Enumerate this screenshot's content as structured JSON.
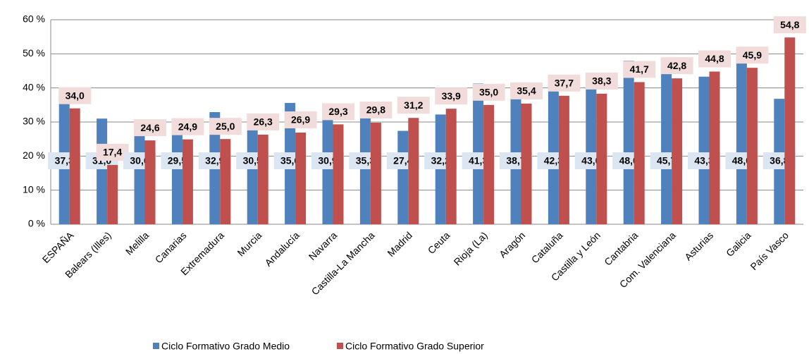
{
  "chart_data": {
    "type": "bar",
    "categories": [
      "ESPAÑA",
      "Balears (Illes)",
      "Melilla",
      "Canarias",
      "Extremadura",
      "Murcia",
      "Andalucía",
      "Navarra",
      "Castilla-La Mancha",
      "Madrid",
      "Ceuta",
      "Rioja (La)",
      "Aragón",
      "Cataluña",
      "Castilla y León",
      "Cantabria",
      "Com. Valenciana",
      "Asturias",
      "Galicia",
      "País Vasco"
    ],
    "series": [
      {
        "name": "Ciclo Formativo Grado Medio",
        "color": "#4f81bd",
        "values": [
          37.3,
          31.0,
          30.6,
          29.5,
          32.9,
          30.5,
          35.6,
          30.9,
          35.3,
          27.4,
          32.2,
          41.3,
          38.7,
          42.3,
          43.0,
          48.0,
          45.7,
          43.3,
          48.0,
          36.8
        ],
        "value_labels": [
          "37,3",
          "31,0",
          "30,6",
          "29,5",
          "32,9",
          "30,5",
          "35,6",
          "30,9",
          "35,3",
          "27,4",
          "32,2",
          "41,3",
          "38,7",
          "42,3",
          "43,0",
          "48,0",
          "45,7",
          "43,3",
          "48,0",
          "36,8"
        ]
      },
      {
        "name": "Ciclo Formativo Grado Superior",
        "color": "#c0504d",
        "values": [
          34.0,
          17.4,
          24.6,
          24.9,
          25.0,
          26.3,
          26.9,
          29.3,
          29.8,
          31.2,
          33.9,
          35.0,
          35.4,
          37.7,
          38.3,
          41.7,
          42.8,
          44.8,
          45.9,
          54.8
        ],
        "value_labels": [
          "34,0",
          "17,4",
          "24,6",
          "24,9",
          "25,0",
          "26,3",
          "26,9",
          "29,3",
          "29,8",
          "31,2",
          "33,9",
          "35,0",
          "35,4",
          "37,7",
          "38,3",
          "41,7",
          "42,8",
          "44,8",
          "45,9",
          "54,8"
        ]
      }
    ],
    "ylim": [
      0,
      60
    ],
    "yticks": [
      {
        "value": 0,
        "label": "0 %"
      },
      {
        "value": 10,
        "label": "10 %"
      },
      {
        "value": 20,
        "label": "20 %"
      },
      {
        "value": 30,
        "label": "30 %"
      },
      {
        "value": 40,
        "label": "40 %"
      },
      {
        "value": 50,
        "label": "50 %"
      },
      {
        "value": 60,
        "label": "60 %"
      }
    ],
    "grid": true,
    "legend": "bottom"
  }
}
